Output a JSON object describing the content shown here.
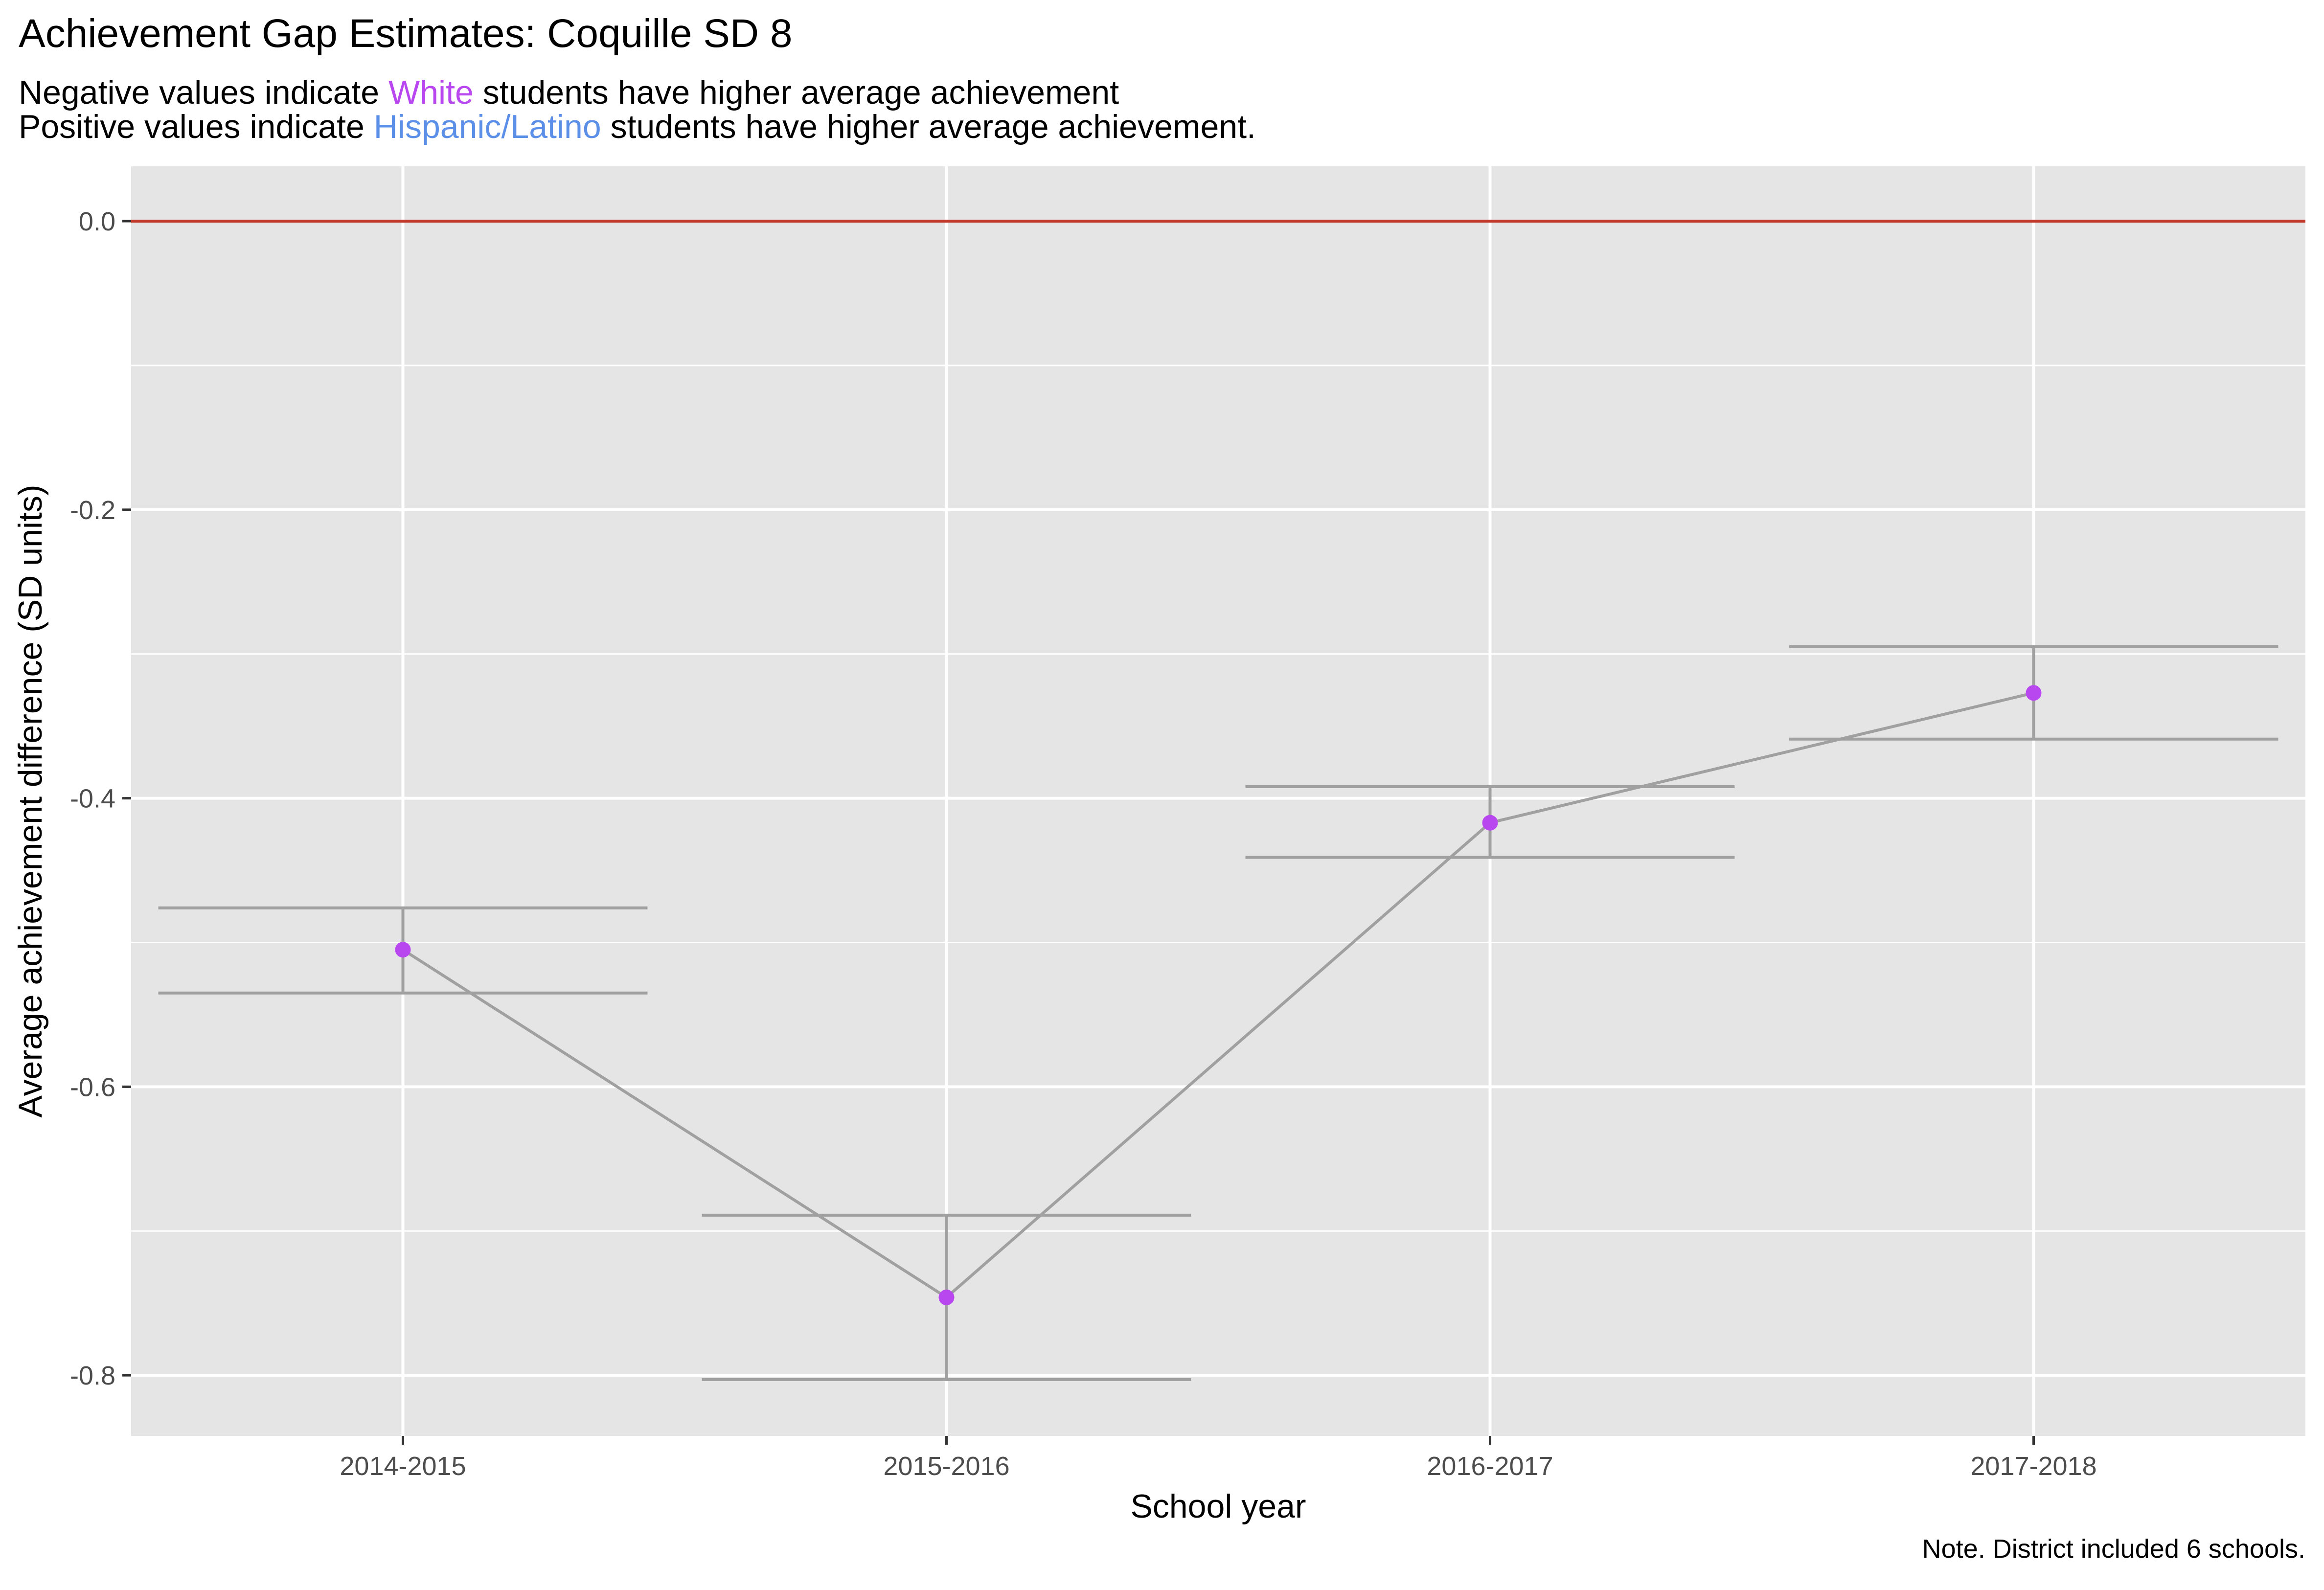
{
  "title": "Achievement Gap Estimates: Coquille SD 8",
  "subtitle": {
    "line1": {
      "before": "Negative values indicate ",
      "group": "White",
      "after": " students have higher average achievement"
    },
    "line2": {
      "before": "Positive values indicate ",
      "group": "Hispanic/Latino",
      "after": " students have higher average achievement."
    }
  },
  "note": "Note. District included 6 schools.",
  "colors": {
    "panel": "#E5E5E5",
    "grid": "#FFFFFF",
    "reference_line": "#C0392B",
    "white_group": "#B847F0",
    "hispanic_group": "#5B8FE8",
    "series": "#A0A0A0",
    "point": "#B847F0"
  },
  "chart_data": {
    "type": "line",
    "title": "Achievement Gap Estimates: Coquille SD 8",
    "xlabel": "School year",
    "ylabel": "Average achievement difference (SD units)",
    "categories": [
      "2014-2015",
      "2015-2016",
      "2016-2017",
      "2017-2018"
    ],
    "values": [
      -0.505,
      -0.746,
      -0.417,
      -0.327
    ],
    "error_bars": {
      "lower": [
        -0.535,
        -0.803,
        -0.441,
        -0.359
      ],
      "upper": [
        -0.476,
        -0.689,
        -0.392,
        -0.295
      ]
    },
    "reference_line": 0.0,
    "ylim": [
      -0.842,
      0.038
    ],
    "yticks": [
      0.0,
      -0.2,
      -0.4,
      -0.6,
      -0.8
    ],
    "ytick_labels": [
      "0.0",
      "-0.2",
      "-0.4",
      "-0.6",
      "-0.8"
    ],
    "grid": true,
    "legend": "none"
  }
}
